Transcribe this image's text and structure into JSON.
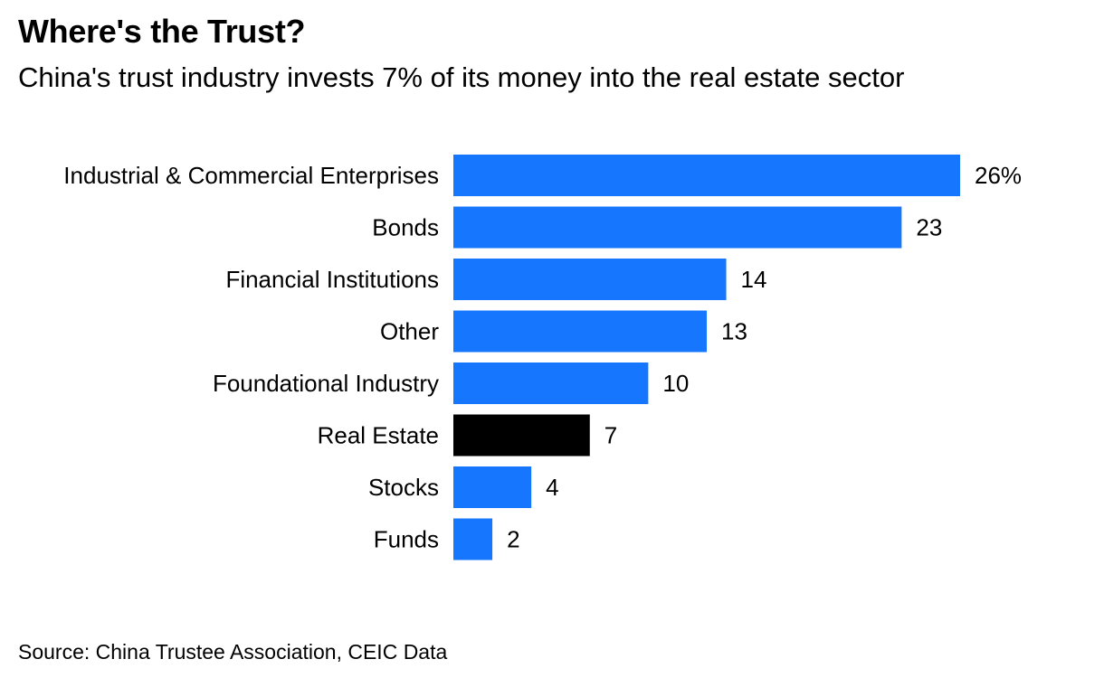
{
  "header": {
    "title": "Where's the Trust?",
    "subtitle": "China's trust industry invests 7% of its money into the real estate sector"
  },
  "footer": {
    "source": "Source: China Trustee Association, CEIC Data"
  },
  "chart_data": {
    "type": "bar",
    "orientation": "horizontal",
    "title": "Where's the Trust?",
    "subtitle": "China's trust industry invests 7% of its money into the real estate sector",
    "categories": [
      "Industrial & Commercial Enterprises",
      "Bonds",
      "Financial Institutions",
      "Other",
      "Foundational Industry",
      "Real Estate",
      "Stocks",
      "Funds"
    ],
    "values": [
      26,
      23,
      14,
      13,
      10,
      7,
      4,
      2
    ],
    "value_labels": [
      "26%",
      "23",
      "14",
      "13",
      "10",
      "7",
      "4",
      "2"
    ],
    "unit": "%",
    "highlight_category": "Real Estate",
    "colors": {
      "default": "#1677fe",
      "highlight": "#000000"
    },
    "xlim": [
      0,
      26
    ],
    "grid": false,
    "legend": "none",
    "xlabel": "",
    "ylabel": ""
  }
}
